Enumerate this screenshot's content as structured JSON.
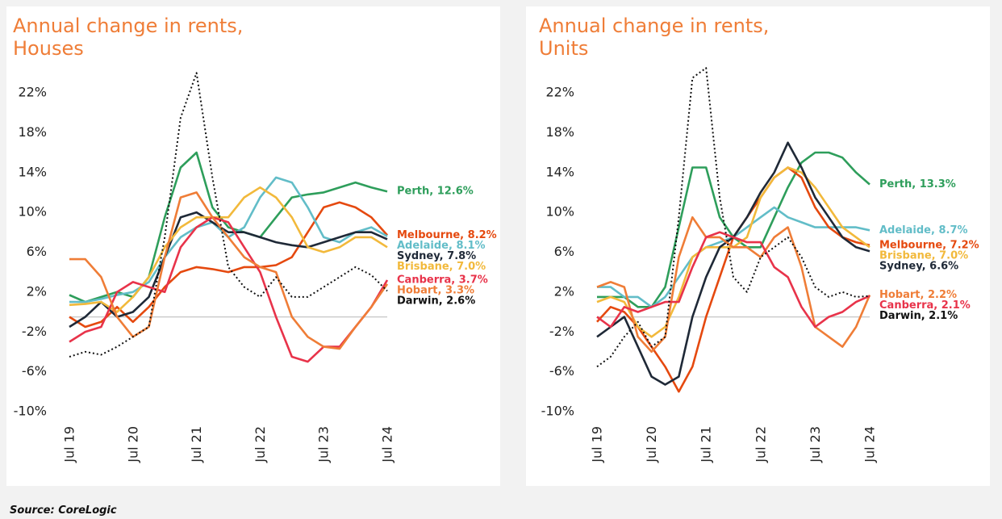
{
  "chart_data": [
    {
      "type": "line",
      "title": "Annual change in rents,",
      "subtitle": "Houses",
      "categories": [
        "Jul 19",
        null,
        null,
        null,
        "Jul 20",
        null,
        null,
        null,
        "Jul 21",
        null,
        null,
        null,
        "Jul 22",
        null,
        null,
        null,
        "Jul 23",
        null,
        null,
        null,
        "Jul 24"
      ],
      "ylim": [
        -10,
        25.5
      ],
      "yticks": [
        {
          "value": -10,
          "label": "-10%"
        },
        {
          "value": -6,
          "label": "-6%"
        },
        {
          "value": -2,
          "label": "-2%"
        },
        {
          "value": 2,
          "label": "2%"
        },
        {
          "value": 6,
          "label": "6%"
        },
        {
          "value": 10,
          "label": "10%"
        },
        {
          "value": 14,
          "label": "14%"
        },
        {
          "value": 18,
          "label": "18%"
        },
        {
          "value": 22,
          "label": "22%"
        }
      ],
      "series": [
        {
          "name": "Perth, 12.6%",
          "color": "#2e9e5b",
          "values": [
            2.2,
            1.5,
            2,
            2.5,
            2,
            4,
            10,
            15,
            16.5,
            11,
            9,
            8.5,
            8,
            10,
            12,
            12.3,
            12.5,
            13,
            13.5,
            13,
            12.6
          ]
        },
        {
          "name": "Melbourne, 8.2%",
          "color": "#e5490f",
          "values": [
            0,
            -1,
            -0.5,
            1,
            -0.5,
            1,
            3,
            4.5,
            5,
            4.8,
            4.5,
            5,
            5,
            5.2,
            6,
            8.5,
            11,
            11.5,
            11,
            10,
            8.2
          ]
        },
        {
          "name": "Adelaide, 8.1%",
          "color": "#62bdc8",
          "values": [
            1.5,
            1.5,
            1.8,
            2.2,
            2.5,
            3.5,
            6,
            8,
            9,
            9.5,
            8,
            9,
            12,
            14,
            13.5,
            11,
            8,
            7.5,
            8.5,
            9,
            8.1
          ]
        },
        {
          "name": "Sydney, 7.8%",
          "color": "#1f2937",
          "values": [
            -1,
            0,
            1.5,
            0,
            0.5,
            2,
            6,
            10,
            10.5,
            9.5,
            8.5,
            8.5,
            8,
            7.5,
            7.2,
            7,
            7.5,
            8,
            8.5,
            8.5,
            7.8
          ]
        },
        {
          "name": "Brisbane, 7.0%",
          "color": "#f2b93b",
          "values": [
            1.2,
            1.3,
            1.5,
            0.5,
            2,
            4,
            7,
            9,
            10,
            10,
            10,
            12,
            13,
            12,
            10,
            7,
            6.5,
            7,
            8,
            8,
            7.0
          ]
        },
        {
          "name": "Canberra, 3.7%",
          "color": "#e8334a",
          "values": [
            -2.5,
            -1.5,
            -1,
            2.5,
            3.5,
            3,
            2.5,
            7,
            9,
            10,
            9.5,
            7,
            4.5,
            0,
            -4,
            -4.5,
            -3,
            -3,
            -1,
            1,
            3.7
          ]
        },
        {
          "name": "Hobart, 3.3%",
          "color": "#ef7d37",
          "values": [
            5.8,
            5.8,
            4,
            0,
            -2,
            -1,
            6,
            12,
            12.5,
            10,
            8,
            6,
            5,
            4.5,
            0,
            -2,
            -3,
            -3.2,
            -1,
            1,
            3.3
          ]
        },
        {
          "name": "Darwin, 2.6%",
          "color": "#111111",
          "dashed": true,
          "values": [
            -4,
            -3.5,
            -3.8,
            -3,
            -2,
            -1,
            8,
            20,
            24.5,
            14,
            5,
            3,
            2,
            4,
            2,
            2,
            3,
            4,
            5,
            4.2,
            2.6
          ]
        }
      ]
    },
    {
      "type": "line",
      "title": "Annual change in rents,",
      "subtitle": "Units",
      "categories": [
        "Jul 19",
        null,
        null,
        null,
        "Jul 20",
        null,
        null,
        null,
        "Jul 21",
        null,
        null,
        null,
        "Jul 22",
        null,
        null,
        null,
        "Jul 23",
        null,
        null,
        null,
        "Jul 24"
      ],
      "ylim": [
        -10,
        25.5
      ],
      "yticks": [
        {
          "value": -10,
          "label": "-10%"
        },
        {
          "value": -6,
          "label": "-6%"
        },
        {
          "value": -2,
          "label": "-2%"
        },
        {
          "value": 2,
          "label": "2%"
        },
        {
          "value": 6,
          "label": "6%"
        },
        {
          "value": 10,
          "label": "10%"
        },
        {
          "value": 14,
          "label": "14%"
        },
        {
          "value": 18,
          "label": "18%"
        },
        {
          "value": 22,
          "label": "22%"
        }
      ],
      "series": [
        {
          "name": "Perth, 13.3%",
          "color": "#2e9e5b",
          "values": [
            2,
            2,
            2,
            1,
            1,
            3,
            9,
            15,
            15,
            10,
            8,
            7,
            7,
            10,
            13,
            15.5,
            16.5,
            16.5,
            16,
            14.5,
            13.3
          ]
        },
        {
          "name": "Adelaide, 8.7%",
          "color": "#62bdc8",
          "values": [
            3,
            3,
            2,
            2,
            1,
            2,
            4,
            6,
            7,
            7.5,
            8,
            9,
            10,
            11,
            10,
            9.5,
            9,
            9,
            9,
            9,
            8.7
          ]
        },
        {
          "name": "Melbourne, 7.2%",
          "color": "#e5490f",
          "values": [
            -0.5,
            1,
            0.5,
            -1,
            -3,
            -5,
            -7.5,
            -5,
            0,
            4,
            8,
            10,
            12,
            14,
            15,
            14,
            11,
            9,
            8,
            7.5,
            7.2
          ]
        },
        {
          "name": "Brisbane, 7.0%",
          "color": "#f2b93b",
          "values": [
            1.5,
            2,
            1.5,
            -1,
            -2,
            -1,
            2,
            6,
            7,
            7,
            7,
            8,
            12,
            14,
            15,
            14.5,
            13,
            11,
            9,
            8,
            7.0
          ]
        },
        {
          "name": "Sydney, 6.6%",
          "color": "#1f2937",
          "values": [
            -2,
            -1,
            0,
            -3,
            -6,
            -6.8,
            -6,
            0,
            4,
            7,
            8,
            10,
            12.5,
            14.5,
            17.5,
            15,
            12,
            10,
            8,
            7,
            6.6
          ]
        },
        {
          "name": "Hobart, 2.2%",
          "color": "#ef7d37",
          "values": [
            3,
            3.5,
            3,
            -2,
            -3.5,
            -2,
            6,
            10,
            8,
            8,
            7,
            7,
            6,
            8,
            9,
            5,
            -1,
            -2,
            -3,
            -1,
            2.2
          ]
        },
        {
          "name": "Canberra, 2.1%",
          "color": "#e8334a",
          "values": [
            0,
            -1,
            1,
            0.5,
            1,
            1.5,
            1.5,
            5,
            8,
            8.5,
            8,
            7.5,
            7.5,
            5,
            4,
            1,
            -1,
            0,
            0.5,
            1.5,
            2.1
          ]
        },
        {
          "name": "Darwin, 2.1%",
          "color": "#111111",
          "dashed": true,
          "values": [
            -5,
            -4,
            -2,
            -0.5,
            -3,
            -2,
            10,
            24,
            25,
            12,
            4,
            2.5,
            6,
            7,
            8,
            6,
            3,
            2,
            2.5,
            2,
            2.1
          ]
        }
      ]
    }
  ],
  "source": "Source: CoreLogic"
}
